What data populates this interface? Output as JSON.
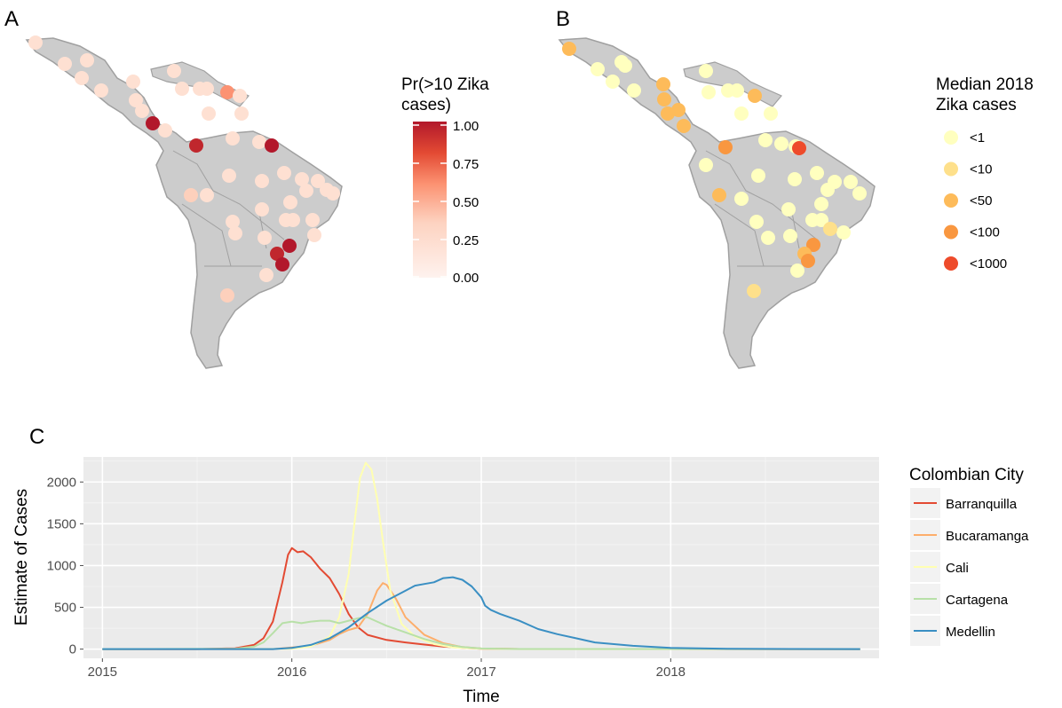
{
  "panels": {
    "a": {
      "label": "A"
    },
    "b": {
      "label": "B"
    },
    "c": {
      "label": "C"
    }
  },
  "map_a": {
    "legend_title_lines": [
      "Pr(>10 Zika",
      "cases)"
    ],
    "legend_ticks": [
      "1.00",
      "0.75",
      "0.50",
      "0.25",
      "0.00"
    ],
    "colors": {
      "low": "#fee0d2",
      "mid": "#fc9272",
      "high": "#b2182b"
    }
  },
  "map_b": {
    "legend_title_lines": [
      "Median 2018",
      "Zika cases"
    ],
    "legend_items": [
      {
        "label": "<1",
        "color": "#ffffbf"
      },
      {
        "label": "<10",
        "color": "#fee08b"
      },
      {
        "label": "<50",
        "color": "#fdbb5a"
      },
      {
        "label": "<100",
        "color": "#f99740"
      },
      {
        "label": "<1000",
        "color": "#ee4b2b"
      }
    ]
  },
  "chart_data": {
    "type": "line",
    "xlabel": "Time",
    "ylabel": "Estimate of Cases",
    "x_ticks": [
      2015,
      2016,
      2017,
      2018
    ],
    "y_ticks": [
      0,
      500,
      1000,
      1500,
      2000
    ],
    "xlim": [
      2014.9,
      2019.1
    ],
    "ylim": [
      -110,
      2300
    ],
    "legend_title": "Colombian City",
    "series": [
      {
        "name": "Barranquilla",
        "color": "#e34a33",
        "x": [
          2015.0,
          2015.5,
          2015.7,
          2015.8,
          2015.85,
          2015.9,
          2015.95,
          2015.98,
          2016.0,
          2016.03,
          2016.06,
          2016.1,
          2016.15,
          2016.2,
          2016.25,
          2016.3,
          2016.35,
          2016.4,
          2016.5,
          2016.6,
          2016.7,
          2016.8,
          2016.9,
          2017.0,
          2017.2,
          2019.0
        ],
        "y": [
          0,
          0,
          10,
          50,
          130,
          330,
          800,
          1130,
          1210,
          1160,
          1170,
          1100,
          960,
          850,
          660,
          420,
          260,
          170,
          110,
          80,
          55,
          30,
          15,
          5,
          2,
          0
        ]
      },
      {
        "name": "Bucaramanga",
        "color": "#fdae6b",
        "x": [
          2015.0,
          2015.9,
          2016.1,
          2016.2,
          2016.25,
          2016.3,
          2016.35,
          2016.4,
          2016.45,
          2016.48,
          2016.5,
          2016.55,
          2016.6,
          2016.7,
          2016.8,
          2016.9,
          2017.0,
          2017.2,
          2019.0
        ],
        "y": [
          0,
          0,
          40,
          110,
          180,
          230,
          260,
          420,
          700,
          790,
          770,
          600,
          380,
          170,
          70,
          25,
          8,
          2,
          0
        ]
      },
      {
        "name": "Cali",
        "color": "#ffffb2",
        "x": [
          2015.0,
          2016.0,
          2016.1,
          2016.2,
          2016.25,
          2016.3,
          2016.33,
          2016.36,
          2016.39,
          2016.42,
          2016.45,
          2016.48,
          2016.52,
          2016.58,
          2016.65,
          2016.75,
          2016.85,
          2017.0,
          2017.2,
          2019.0
        ],
        "y": [
          0,
          5,
          30,
          150,
          380,
          900,
          1500,
          2050,
          2230,
          2150,
          1800,
          1300,
          700,
          300,
          150,
          60,
          20,
          5,
          0,
          0
        ]
      },
      {
        "name": "Cartagena",
        "color": "#b8e0a8",
        "x": [
          2015.0,
          2015.7,
          2015.8,
          2015.85,
          2015.9,
          2015.95,
          2016.0,
          2016.05,
          2016.1,
          2016.15,
          2016.2,
          2016.25,
          2016.3,
          2016.35,
          2016.4,
          2016.45,
          2016.5,
          2016.6,
          2016.7,
          2016.8,
          2016.9,
          2017.0,
          2017.2,
          2019.0
        ],
        "y": [
          0,
          5,
          30,
          80,
          190,
          310,
          330,
          310,
          330,
          340,
          340,
          310,
          340,
          370,
          380,
          330,
          280,
          200,
          120,
          60,
          25,
          8,
          2,
          0
        ]
      },
      {
        "name": "Medellin",
        "color": "#3a8fc3",
        "x": [
          2015.0,
          2015.9,
          2016.0,
          2016.1,
          2016.2,
          2016.3,
          2016.4,
          2016.5,
          2016.6,
          2016.65,
          2016.7,
          2016.75,
          2016.8,
          2016.85,
          2016.9,
          2016.95,
          2017.0,
          2017.02,
          2017.05,
          2017.1,
          2017.2,
          2017.3,
          2017.4,
          2017.5,
          2017.6,
          2017.8,
          2018.0,
          2018.3,
          2019.0
        ],
        "y": [
          0,
          0,
          15,
          50,
          130,
          260,
          430,
          580,
          700,
          760,
          780,
          800,
          850,
          860,
          830,
          750,
          620,
          520,
          470,
          420,
          340,
          240,
          180,
          130,
          80,
          40,
          15,
          4,
          0
        ]
      }
    ]
  }
}
